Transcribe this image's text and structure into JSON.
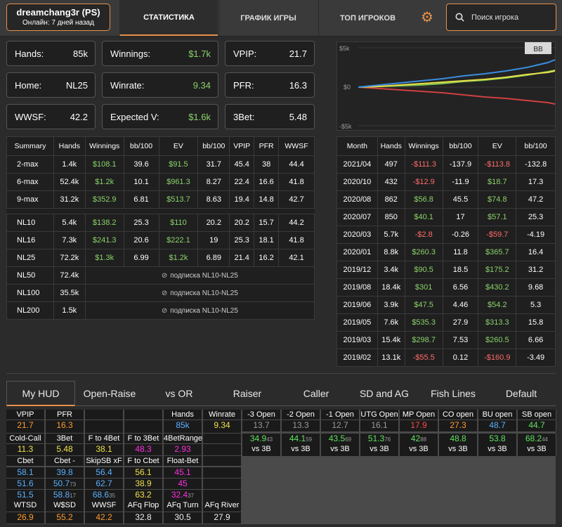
{
  "player": {
    "name": "dreamchang3r (PS)",
    "online": "Онлайн: 7 дней назад"
  },
  "nav": {
    "stats": "СТАТИСТИКА",
    "graph": "ГРАФИК ИГРЫ",
    "top": "ТОП ИГРОКОВ"
  },
  "search": {
    "placeholder": "Поиск игрока"
  },
  "stats": {
    "hands": {
      "label": "Hands:",
      "value": "85k"
    },
    "home": {
      "label": "Home:",
      "value": "NL25"
    },
    "wwsf": {
      "label": "WWSF:",
      "value": "42.2"
    },
    "winnings": {
      "label": "Winnings:",
      "value": "$1.7k"
    },
    "winrate": {
      "label": "Winrate:",
      "value": "9.34"
    },
    "ev": {
      "label": "Expected V:",
      "value": "$1.6k"
    },
    "vpip": {
      "label": "VPIP:",
      "value": "21.7"
    },
    "pfr": {
      "label": "PFR:",
      "value": "16.3"
    },
    "threebet": {
      "label": "3Bet:",
      "value": "5.48"
    }
  },
  "chart": {
    "badge": "BB",
    "ylabels": [
      "$5k",
      "$0",
      "-$5k"
    ],
    "colors": {
      "blue": "#3a8de0",
      "green": "#7cc14a",
      "yellow": "#e8e04a",
      "red": "#d04040"
    }
  },
  "summary": {
    "headers": [
      "Summary",
      "Hands",
      "Winnings",
      "bb/100",
      "EV",
      "bb/100",
      "VPIP",
      "PFR",
      "WWSF"
    ],
    "rows1": [
      [
        "2-max",
        "1.4k",
        "$108.1",
        "39.6",
        "$91.5",
        "31.7",
        "45.4",
        "38",
        "44.4"
      ],
      [
        "6-max",
        "52.4k",
        "$1.2k",
        "10.1",
        "$961.3",
        "8.27",
        "22.4",
        "16.6",
        "41.8"
      ],
      [
        "9-max",
        "31.2k",
        "$352.9",
        "6.81",
        "$513.7",
        "8.63",
        "19.4",
        "14.8",
        "42.7"
      ]
    ],
    "rows2": [
      [
        "NL10",
        "5.4k",
        "$138.2",
        "25.3",
        "$110",
        "20.2",
        "20.2",
        "15.7",
        "44.2"
      ],
      [
        "NL16",
        "7.3k",
        "$241.3",
        "20.6",
        "$222.1",
        "19",
        "25.3",
        "18.1",
        "41.8"
      ],
      [
        "NL25",
        "72.2k",
        "$1.3k",
        "6.99",
        "$1.2k",
        "6.89",
        "21.4",
        "16.2",
        "42.1"
      ]
    ],
    "locked": [
      [
        "NL50",
        "72.4k",
        "подписка NL10-NL25"
      ],
      [
        "NL100",
        "35.5k",
        "подписка NL10-NL25"
      ],
      [
        "NL200",
        "1.5k",
        "подписка NL10-NL25"
      ]
    ]
  },
  "months": {
    "headers": [
      "Month",
      "Hands",
      "Winnings",
      "bb/100",
      "EV",
      "bb/100"
    ],
    "rows": [
      [
        "2021/04",
        "497",
        "-$111.3",
        "-137.9",
        "-$113.8",
        "-132.8"
      ],
      [
        "2020/10",
        "432",
        "-$12.9",
        "-11.9",
        "$18.7",
        "17.3"
      ],
      [
        "2020/08",
        "862",
        "$56.8",
        "45.5",
        "$74.8",
        "47.2"
      ],
      [
        "2020/07",
        "850",
        "$40.1",
        "17",
        "$57.1",
        "25.3"
      ],
      [
        "2020/03",
        "5.7k",
        "-$2.8",
        "-0.26",
        "-$59.7",
        "-4.19"
      ],
      [
        "2020/01",
        "8.8k",
        "$260.3",
        "11.8",
        "$365.7",
        "16.4"
      ],
      [
        "2019/12",
        "3.4k",
        "$90.5",
        "18.5",
        "$175.2",
        "31.2"
      ],
      [
        "2019/08",
        "18.4k",
        "$301",
        "6.56",
        "$430.2",
        "9.68"
      ],
      [
        "2019/06",
        "3.9k",
        "$47.5",
        "4.46",
        "$54.2",
        "5.3"
      ],
      [
        "2019/05",
        "7.6k",
        "$535.3",
        "27.9",
        "$313.3",
        "15.8"
      ],
      [
        "2019/03",
        "15.4k",
        "$298.7",
        "7.53",
        "$260.5",
        "6.66"
      ],
      [
        "2019/02",
        "13.1k",
        "-$55.5",
        "0.12",
        "-$160.9",
        "-3.49"
      ]
    ]
  },
  "hudtabs": [
    "My HUD",
    "Open-Raise",
    "vs OR",
    "Raiser",
    "Caller",
    "SD and AG",
    "Fish Lines",
    "Default"
  ],
  "hud": {
    "vpip": "VPIP",
    "pfr": "PFR",
    "hands": "Hands",
    "winrate": "Winrate",
    "vpip_v": "21.7",
    "pfr_v": "16.3",
    "hands_v": "85k",
    "winrate_v": "9.34",
    "coldcall": "Cold-Call",
    "threebet": "3Bet",
    "f4bet": "F to 4Bet",
    "f3bet": "F to 3Bet",
    "range4": "4BetRange",
    "coldcall_v": "11.3",
    "threebet_v": "5.48",
    "f4bet_v": "38.1",
    "f3bet_v": "48.3",
    "range4_v": "2.93",
    "cbet": "Cbet",
    "cbetfold": "Cbet - Fold",
    "skip": "SkipSB xF",
    "fcbet": "F to Cbet",
    "floatbet": "Float-Bet",
    "r1": [
      "58.1",
      "39.8",
      "56.4",
      "56.1",
      "45.1"
    ],
    "r2": [
      "51.6",
      "50.7",
      "62.7",
      "38.9",
      "45"
    ],
    "r2sub": [
      "",
      "73",
      "",
      "",
      ""
    ],
    "r3": [
      "51.5",
      "58.8",
      "68.6",
      "63.2",
      "32.4"
    ],
    "r3sub": [
      "",
      "17",
      "35",
      "",
      "37"
    ],
    "wtsd": "WTSD",
    "wsd": "W$SD",
    "wwsf": "WWSF",
    "afflop": "AFq Flop",
    "afturn": "AFq Turn",
    "afriver": "AFq River",
    "wtsd_v": "26.9",
    "wsd_v": "55.2",
    "wwsf_v": "42.2",
    "afflop_v": "32.8",
    "afturn_v": "30.5",
    "afriver_v": "27.9",
    "pos": [
      "-3 Open",
      "-2 Open",
      "-1 Open",
      "UTG Open",
      "MP Open",
      "CO open",
      "BU open",
      "SB open"
    ],
    "pos_v": [
      "13.7",
      "13.3",
      "12.7",
      "16.1",
      "17.9",
      "27.3",
      "48.7",
      "44.7"
    ],
    "vs3b": [
      "34.9",
      "44.1",
      "43.5",
      "51.3",
      "42",
      "48.8",
      "53.8",
      "68.2"
    ],
    "vs3b_sub": [
      "43",
      "59",
      "69",
      "76",
      "88",
      "",
      "",
      "44"
    ],
    "vs3b_label": "vs 3B"
  }
}
